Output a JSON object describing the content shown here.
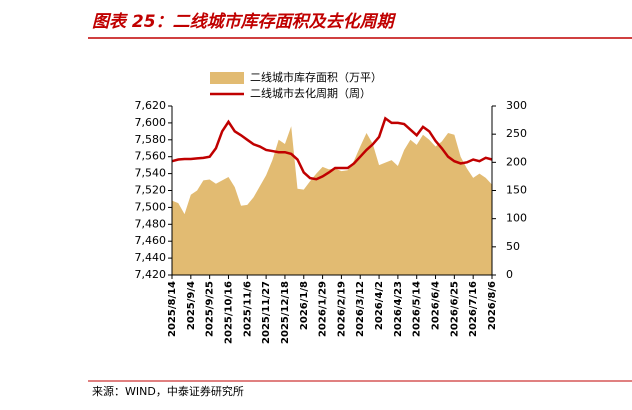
{
  "chart_data": {
    "type": "combo",
    "title": "图表 25：二线城市库存面积及去化周期",
    "source": "来源：WIND，中泰证券研究所",
    "categories": [
      "2025/8/14",
      null,
      null,
      "2025/9/4",
      null,
      null,
      "2025/9/25",
      null,
      null,
      "2025/10/16",
      null,
      null,
      "2025/11/6",
      null,
      null,
      "2025/11/27",
      null,
      null,
      "2025/12/18",
      null,
      null,
      "2026/1/8",
      null,
      null,
      "2026/1/29",
      null,
      null,
      "2026/2/19",
      null,
      null,
      "2026/3/12",
      null,
      null,
      "2026/4/2",
      null,
      null,
      "2026/4/23",
      null,
      null,
      "2026/5/14",
      null,
      null,
      "2026/6/4",
      null,
      null,
      "2026/6/25",
      null,
      null,
      "2026/7/16",
      null,
      null,
      "2026/8/6"
    ],
    "series": [
      {
        "name": "二线城市库存面积（万平）",
        "type": "area",
        "axis": "y",
        "color": "#e2bb72",
        "values": [
          7508,
          7505,
          7492,
          7515,
          7520,
          7532,
          7533,
          7528,
          7532,
          7536,
          7524,
          7502,
          7503,
          7512,
          7525,
          7538,
          7556,
          7580,
          7575,
          7596,
          7522,
          7521,
          7531,
          7540,
          7548,
          7545,
          7546,
          7543,
          7544,
          7555,
          7572,
          7588,
          7575,
          7550,
          7553,
          7556,
          7549,
          7568,
          7580,
          7574,
          7586,
          7580,
          7572,
          7578,
          7588,
          7586,
          7560,
          7546,
          7535,
          7540,
          7535,
          7527
        ]
      },
      {
        "name": "二线城市去化周期（周）",
        "type": "line",
        "axis": "y2",
        "color": "#c00000",
        "values": [
          202,
          205,
          206,
          206,
          207,
          208,
          210,
          225,
          255,
          272,
          255,
          248,
          240,
          232,
          228,
          222,
          220,
          218,
          218,
          215,
          205,
          182,
          172,
          170,
          175,
          182,
          190,
          190,
          190,
          198,
          210,
          222,
          232,
          245,
          278,
          270,
          270,
          268,
          258,
          248,
          263,
          255,
          238,
          225,
          210,
          202,
          198,
          200,
          205,
          202,
          208,
          205
        ]
      }
    ],
    "ylim": [
      7420,
      7620
    ],
    "yticks": [
      {
        "value": 7420,
        "label": "7,420"
      },
      {
        "value": 7440,
        "label": "7,440"
      },
      {
        "value": 7460,
        "label": "7,460"
      },
      {
        "value": 7480,
        "label": "7,480"
      },
      {
        "value": 7500,
        "label": "7,500"
      },
      {
        "value": 7520,
        "label": "7,520"
      },
      {
        "value": 7540,
        "label": "7,540"
      },
      {
        "value": 7560,
        "label": "7,560"
      },
      {
        "value": 7580,
        "label": "7,580"
      },
      {
        "value": 7600,
        "label": "7,600"
      },
      {
        "value": 7620,
        "label": "7,620"
      }
    ],
    "y2lim": [
      0,
      300
    ],
    "y2ticks": [
      0,
      50,
      100,
      150,
      200,
      250,
      300
    ],
    "legend": "top"
  }
}
